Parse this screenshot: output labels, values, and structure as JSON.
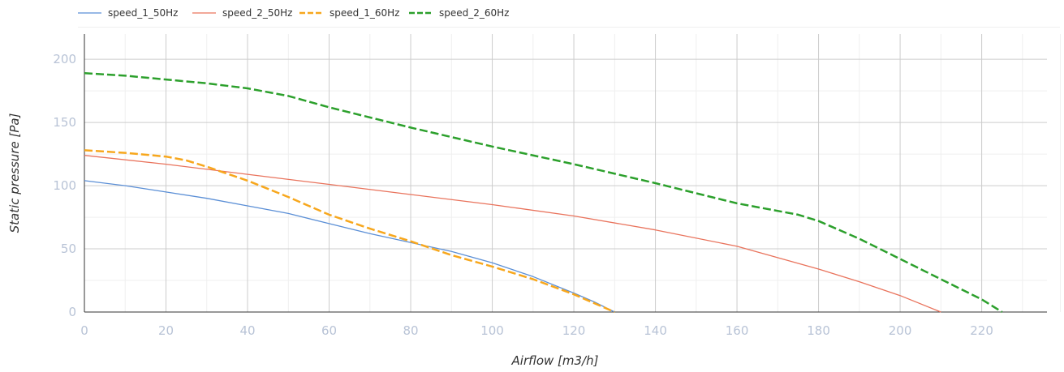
{
  "chart_data": {
    "type": "line",
    "xlabel": "Airflow [m3/h]",
    "ylabel": "Static pressure [Pa]",
    "xlim": [
      0,
      236
    ],
    "ylim": [
      0,
      220
    ],
    "x_ticks": [
      0,
      20,
      40,
      60,
      80,
      100,
      120,
      140,
      160,
      180,
      200,
      220
    ],
    "y_ticks": [
      0,
      50,
      100,
      150,
      200
    ],
    "grid": true,
    "legend_position": "top-left",
    "series": [
      {
        "name": "speed_1_50Hz",
        "color": "#5b8fd6",
        "dash": "solid",
        "x": [
          0,
          10,
          20,
          30,
          40,
          50,
          60,
          70,
          80,
          90,
          100,
          110,
          120,
          125,
          130
        ],
        "y": [
          104,
          100,
          95,
          90,
          84,
          78,
          70,
          62,
          55,
          48,
          39,
          28,
          15,
          8,
          0
        ]
      },
      {
        "name": "speed_2_50Hz",
        "color": "#e9735c",
        "dash": "solid",
        "x": [
          0,
          20,
          40,
          60,
          80,
          100,
          120,
          140,
          160,
          180,
          190,
          200,
          210
        ],
        "y": [
          124,
          117,
          109,
          101,
          93,
          85,
          76,
          65,
          52,
          34,
          24,
          13,
          0
        ]
      },
      {
        "name": "speed_1_60Hz",
        "color": "#f7a71d",
        "dash": "dashed",
        "x": [
          0,
          10,
          20,
          25,
          30,
          40,
          50,
          60,
          70,
          80,
          90,
          100,
          110,
          120,
          125,
          130
        ],
        "y": [
          128,
          126,
          123,
          120,
          115,
          104,
          91,
          77,
          66,
          56,
          45,
          36,
          26,
          14,
          7,
          0
        ]
      },
      {
        "name": "speed_2_60Hz",
        "color": "#2ca02c",
        "dash": "dashed",
        "x": [
          0,
          10,
          20,
          30,
          40,
          50,
          60,
          80,
          100,
          120,
          140,
          160,
          175,
          180,
          190,
          200,
          210,
          220,
          225
        ],
        "y": [
          189,
          187,
          184,
          181,
          177,
          171,
          162,
          146,
          131,
          117,
          102,
          86,
          77,
          72,
          58,
          42,
          26,
          10,
          0
        ]
      }
    ]
  }
}
